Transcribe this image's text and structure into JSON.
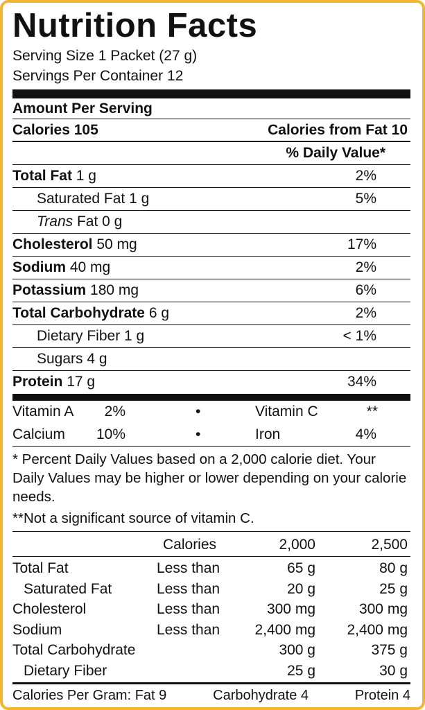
{
  "title": "Nutrition Facts",
  "serving_size": "Serving Size 1 Packet (27 g)",
  "servings_per_container": "Servings Per Container 12",
  "amount_per_serving": "Amount Per Serving",
  "calories": "Calories 105",
  "calories_from_fat": "Calories from Fat 10",
  "daily_value_header": "% Daily Value*",
  "nutrients": [
    {
      "name": "Total Fat",
      "amount": "1 g",
      "daily_value": "2%"
    },
    {
      "name": "Saturated Fat",
      "amount": "1 g",
      "daily_value": "5%"
    },
    {
      "name_italic": "Trans",
      "name": "Fat",
      "amount": "0 g"
    },
    {
      "name": "Cholesterol",
      "amount": "50 mg",
      "daily_value": "17%"
    },
    {
      "name": "Sodium",
      "amount": "40 mg",
      "daily_value": "2%"
    },
    {
      "name": "Potassium",
      "amount": "180 mg",
      "daily_value": "6%"
    },
    {
      "name": "Total Carbohydrate",
      "amount": "6 g",
      "daily_value": "2%"
    },
    {
      "name": "Dietary Fiber",
      "amount": "1 g",
      "daily_value": "< 1%"
    },
    {
      "name": "Sugars",
      "amount": "4 g"
    },
    {
      "name": "Protein",
      "amount": "17 g",
      "daily_value": "34%"
    }
  ],
  "vitamins": [
    {
      "name": "Vitamin A",
      "value": "2%"
    },
    {
      "name": "Vitamin C",
      "value": "**"
    },
    {
      "name": "Calcium",
      "value": "10%"
    },
    {
      "name": "Iron",
      "value": "4%"
    }
  ],
  "footnotes": [
    "* Percent Daily Values based on a 2,000 calorie diet. Your Daily Values may be higher or lower depending on your calorie needs.",
    "**Not a significant source of vitamin C."
  ],
  "reference_table": {
    "header": {
      "label": "Calories",
      "columns": [
        "2,000",
        "2,500"
      ]
    },
    "rows": [
      {
        "name": "Total Fat",
        "limit": "Less than",
        "values": [
          "65 g",
          "80 g"
        ]
      },
      {
        "name": "Saturated Fat",
        "limit": "Less than",
        "values": [
          "20 g",
          "25 g"
        ]
      },
      {
        "name": "Cholesterol",
        "limit": "Less than",
        "values": [
          "300 mg",
          "300 mg"
        ]
      },
      {
        "name": "Sodium",
        "limit": "Less than",
        "values": [
          "2,400 mg",
          "2,400 mg"
        ]
      },
      {
        "name": "Total Carbohydrate",
        "values": [
          "300 g",
          "375 g"
        ]
      },
      {
        "name": "Dietary Fiber",
        "values": [
          "25 g",
          "30 g"
        ]
      }
    ]
  },
  "calories_per_gram": [
    "Calories Per Gram: Fat 9",
    "Carbohydrate 4",
    "Protein 4"
  ]
}
